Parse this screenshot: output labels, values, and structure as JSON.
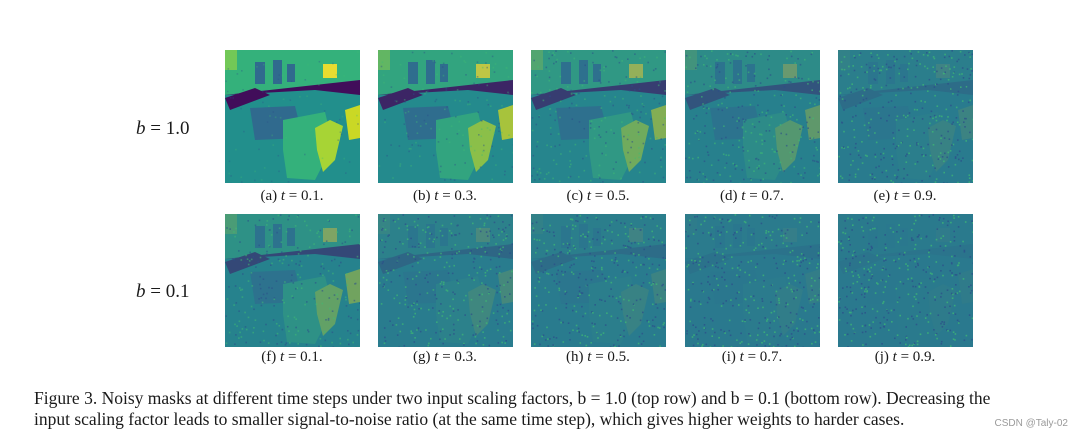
{
  "rows": [
    {
      "label_var": "b",
      "label_eq": " = 1.0",
      "panels": [
        {
          "letter": "(a)",
          "var": "t",
          "eq": " = 0.1.",
          "noise": 0.1
        },
        {
          "letter": "(b)",
          "var": "t",
          "eq": " = 0.3.",
          "noise": 0.3
        },
        {
          "letter": "(c)",
          "var": "t",
          "eq": " = 0.5.",
          "noise": 0.5
        },
        {
          "letter": "(d)",
          "var": "t",
          "eq": " = 0.7.",
          "noise": 0.7
        },
        {
          "letter": "(e)",
          "var": "t",
          "eq": " = 0.9.",
          "noise": 0.9
        }
      ]
    },
    {
      "label_var": "b",
      "label_eq": " = 0.1",
      "panels": [
        {
          "letter": "(f)",
          "var": "t",
          "eq": " = 0.1.",
          "noise": 0.6
        },
        {
          "letter": "(g)",
          "var": "t",
          "eq": " = 0.3.",
          "noise": 0.85
        },
        {
          "letter": "(h)",
          "var": "t",
          "eq": " = 0.5.",
          "noise": 0.9
        },
        {
          "letter": "(i)",
          "var": "t",
          "eq": " = 0.7.",
          "noise": 0.95
        },
        {
          "letter": "(j)",
          "var": "t",
          "eq": " = 0.9.",
          "noise": 0.97
        }
      ]
    }
  ],
  "caption": {
    "line1": "Figure 3. Noisy masks at different time steps under two input scaling factors, b = 1.0 (top row) and b = 0.1 (bottom row). Decreasing the",
    "line2": "input scaling factor leads to smaller signal-to-noise ratio (at the same time step), which gives higher weights to harder cases."
  },
  "watermark": "CSDN @Taly-02",
  "colors": {
    "viridis_purple": "#440154",
    "viridis_blue": "#31688e",
    "viridis_teal": "#21918c",
    "viridis_green": "#35b779",
    "viridis_yellow": "#fde725",
    "noise_base": "#2a788e"
  }
}
